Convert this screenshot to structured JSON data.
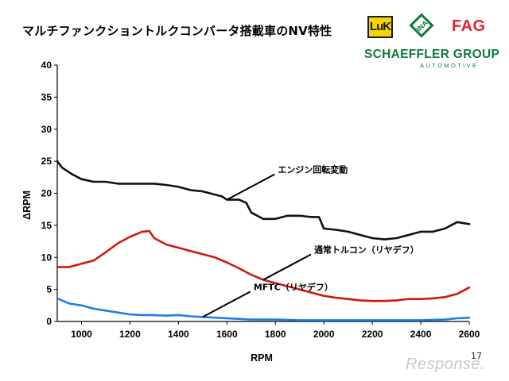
{
  "slide": {
    "title": "マルチファンクショントルクコンバータ搭載車のNV特性",
    "page_number": "17"
  },
  "logos": {
    "luk": "LuK",
    "ina": "INA",
    "fag": "FAG",
    "group": "SCHAEFFLER GROUP",
    "group_sub": "AUTOMOTIVE"
  },
  "watermark": "Response.",
  "colors": {
    "engine": "#111111",
    "conventional": "#cc1a10",
    "mftc": "#1f7fe0",
    "brand_green": "#0c7a3e",
    "fag_red": "#e2232a",
    "luk_yellow": "#f5d400"
  },
  "chart_data": {
    "type": "line",
    "title": "",
    "xlabel": "RPM",
    "ylabel": "ΔRPM",
    "xlim": [
      900,
      2600
    ],
    "ylim": [
      0,
      40
    ],
    "xticks": [
      1000,
      1200,
      1400,
      1600,
      1800,
      2000,
      2200,
      2400,
      2600
    ],
    "yticks": [
      0,
      5,
      10,
      15,
      20,
      25,
      30,
      35,
      40
    ],
    "grid": false,
    "legend": "none",
    "annotations": [
      {
        "text": "エンジン回転変動",
        "series": 0,
        "x": 1600
      },
      {
        "text": "通常トルコン（リヤデフ）",
        "series": 1,
        "x": 1750
      },
      {
        "text": "MFTC（リヤデフ）",
        "series": 2,
        "x": 1500
      }
    ],
    "series": [
      {
        "key": "engine",
        "x": [
          900,
          920,
          960,
          1000,
          1050,
          1100,
          1150,
          1200,
          1250,
          1300,
          1350,
          1400,
          1450,
          1500,
          1550,
          1580,
          1600,
          1650,
          1680,
          1700,
          1750,
          1800,
          1850,
          1900,
          1950,
          1980,
          2000,
          2050,
          2100,
          2150,
          2200,
          2250,
          2300,
          2350,
          2400,
          2450,
          2500,
          2550,
          2600
        ],
        "y": [
          25,
          24,
          23,
          22.2,
          21.8,
          21.8,
          21.5,
          21.5,
          21.5,
          21.5,
          21.3,
          21,
          20.5,
          20.3,
          19.8,
          19.5,
          19,
          19,
          18.5,
          17,
          16,
          16,
          16.5,
          16.5,
          16.3,
          16.3,
          14.5,
          14.3,
          14,
          13.5,
          13,
          12.8,
          13,
          13.5,
          14,
          14,
          14.5,
          15.5,
          15.2
        ]
      },
      {
        "key": "conventional",
        "x": [
          900,
          950,
          1000,
          1050,
          1100,
          1150,
          1200,
          1250,
          1280,
          1300,
          1350,
          1400,
          1450,
          1500,
          1550,
          1600,
          1650,
          1700,
          1750,
          1800,
          1850,
          1900,
          1950,
          2000,
          2050,
          2100,
          2150,
          2200,
          2250,
          2300,
          2350,
          2400,
          2450,
          2500,
          2550,
          2600
        ],
        "y": [
          8.5,
          8.5,
          9,
          9.5,
          10.8,
          12.2,
          13.2,
          14,
          14.1,
          13,
          12,
          11.5,
          11,
          10.5,
          10,
          9.2,
          8.3,
          7.3,
          6.5,
          6,
          5.5,
          5,
          4.5,
          4,
          3.7,
          3.5,
          3.3,
          3.2,
          3.2,
          3.3,
          3.5,
          3.5,
          3.6,
          3.8,
          4.3,
          5.3
        ]
      },
      {
        "key": "mftc",
        "x": [
          900,
          950,
          1000,
          1050,
          1100,
          1150,
          1200,
          1250,
          1300,
          1350,
          1400,
          1450,
          1500,
          1550,
          1600,
          1650,
          1700,
          1800,
          1900,
          2000,
          2100,
          2200,
          2300,
          2400,
          2500,
          2550,
          2600
        ],
        "y": [
          3.6,
          2.8,
          2.5,
          2,
          1.7,
          1.4,
          1.1,
          1,
          1,
          0.9,
          1,
          0.8,
          0.7,
          0.6,
          0.5,
          0.4,
          0.3,
          0.3,
          0.2,
          0.2,
          0.2,
          0.2,
          0.2,
          0.2,
          0.3,
          0.5,
          0.6
        ]
      }
    ]
  }
}
